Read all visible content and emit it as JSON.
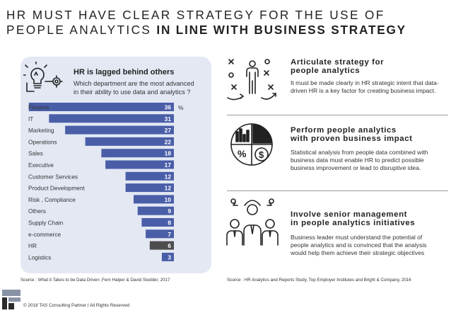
{
  "header": {
    "title_line1": "HR MUST HAVE CLEAR STRATEGY FOR THE USE OF",
    "title_line2_prefix": "PEOPLE ANALYTICS ",
    "title_line2_bold": "IN LINE WITH BUSINESS STRATEGY"
  },
  "panel": {
    "heading": "HR is lagged behind others",
    "question": "Which department are the most advanced in their ability to use data and analytics ?",
    "icon": "lightbulb-gear-icon"
  },
  "chart_data": {
    "type": "bar",
    "orientation": "horizontal",
    "unit": "%",
    "categories": [
      "Finance",
      "IT",
      "Marketing",
      "Operations",
      "Sales",
      "Executive",
      "Customer Services",
      "Product Development",
      "Risk , Compliance",
      "Others",
      "Supply Chain",
      "e-commerce",
      "HR",
      "Logistics"
    ],
    "values": [
      36,
      31,
      27,
      22,
      18,
      17,
      12,
      12,
      10,
      9,
      8,
      7,
      6,
      3
    ],
    "highlight_category": "HR",
    "bar_color": "#4a5ea8",
    "highlight_color": "#4d4d4d",
    "xlim": [
      0,
      40
    ]
  },
  "sources": {
    "left": "Source : What it Takes to be Data Driven ,Fern Halper & David Stodder, 2017",
    "right": "Source : HR Analytics and Reports Study, Top Employer Institutes and Bright & Company, 2016"
  },
  "blocks": [
    {
      "title_line1": "Articulate strategy for",
      "title_line2": "people analytics",
      "text": "It must be made clearly in HR strategic intent that data-driven HR is a key factor for creating business impact.",
      "icon": "strategy-playbook-icon"
    },
    {
      "title_line1": "Perform people analytics",
      "title_line2": "with proven business impact",
      "text": "Statistical analysis from people data combined with business data must enable HR to predict possible business improvement or lead to disruptive idea.",
      "icon": "pie-analytics-icon"
    },
    {
      "title_line1": "Involve senior management",
      "title_line2": "in people analytics initiatives",
      "text": "Business leader must understand the potential of people analytics and is convinced that the analysis would help them achieve their strategic objectives",
      "icon": "team-leaders-icon"
    }
  ],
  "footer": {
    "copyright": "© 2018 TAS Consulting Partner  I  All Rights Reserved",
    "logo_icon": "tas-logo-icon"
  }
}
